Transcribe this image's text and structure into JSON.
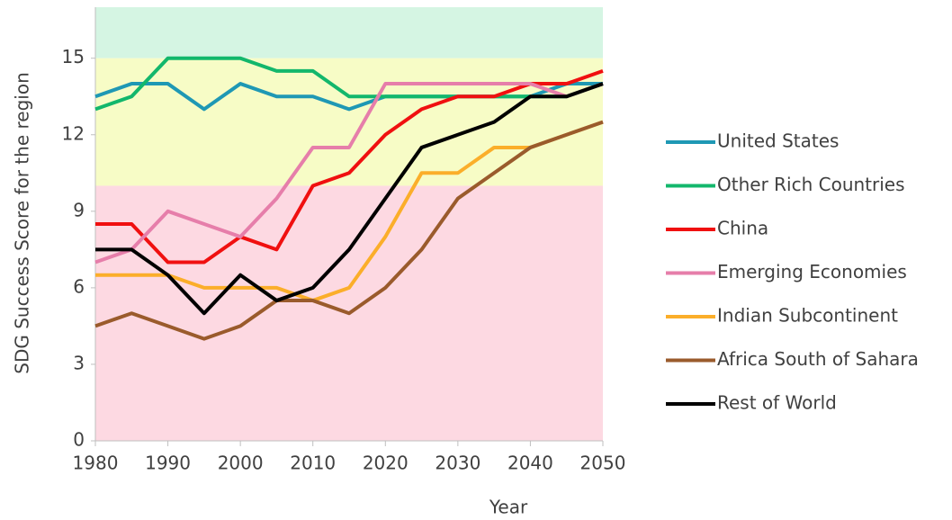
{
  "chart_data": {
    "type": "line",
    "x_label": "Year",
    "y_label": "SDG Success Score for the region",
    "x": [
      1980,
      1985,
      1990,
      1995,
      2000,
      2005,
      2010,
      2015,
      2020,
      2025,
      2030,
      2035,
      2040,
      2045,
      2050
    ],
    "series": [
      {
        "name": "United States",
        "color": "#1f98b4",
        "values": [
          13.5,
          14,
          14,
          13,
          14,
          13.5,
          13.5,
          13,
          13.5,
          13.5,
          13.5,
          13.5,
          13.5,
          14,
          14
        ]
      },
      {
        "name": "Other Rich Countries",
        "color": "#13b76c",
        "values": [
          13,
          13.5,
          15,
          15,
          15,
          14.5,
          14.5,
          13.5,
          13.5,
          13.5,
          13.5,
          13.5,
          13.5,
          13.5,
          14
        ]
      },
      {
        "name": "China",
        "color": "#f01010",
        "values": [
          8.5,
          8.5,
          7,
          7,
          8,
          7.5,
          10,
          10.5,
          12,
          13,
          13.5,
          13.5,
          14,
          14,
          14.5
        ]
      },
      {
        "name": "Emerging Economies",
        "color": "#e67eaa",
        "values": [
          7,
          7.5,
          9,
          8.5,
          8,
          9.5,
          11.5,
          11.5,
          14,
          14,
          14,
          14,
          14,
          13.5,
          14
        ]
      },
      {
        "name": "Indian Subcontinent",
        "color": "#fbae2a",
        "values": [
          6.5,
          6.5,
          6.5,
          6,
          6,
          6,
          5.5,
          6,
          8,
          10.5,
          10.5,
          11.5,
          11.5,
          12,
          12.5
        ]
      },
      {
        "name": "Africa South of Sahara",
        "color": "#9a5b2c",
        "values": [
          4.5,
          5,
          4.5,
          4,
          4.5,
          5.5,
          5.5,
          5,
          6,
          7.5,
          9.5,
          10.5,
          11.5,
          12,
          12.5
        ]
      },
      {
        "name": "Rest of World",
        "color": "#000000",
        "values": [
          7.5,
          7.5,
          6.5,
          5,
          6.5,
          5.5,
          6,
          7.5,
          9.5,
          11.5,
          12,
          12.5,
          13.5,
          13.5,
          14
        ]
      }
    ],
    "bands": [
      {
        "from": 15,
        "to": 17,
        "color": "#d5f5e3"
      },
      {
        "from": 10,
        "to": 15,
        "color": "#f7fcc6"
      },
      {
        "from": 0,
        "to": 10,
        "color": "#fdd9e2"
      }
    ],
    "xlim": [
      1980,
      2050
    ],
    "xticks": [
      1980,
      1990,
      2000,
      2010,
      2020,
      2030,
      2040,
      2050
    ],
    "ylim": [
      0,
      17
    ],
    "yticks": [
      0,
      3,
      6,
      9,
      12,
      15
    ],
    "legend": "right"
  }
}
